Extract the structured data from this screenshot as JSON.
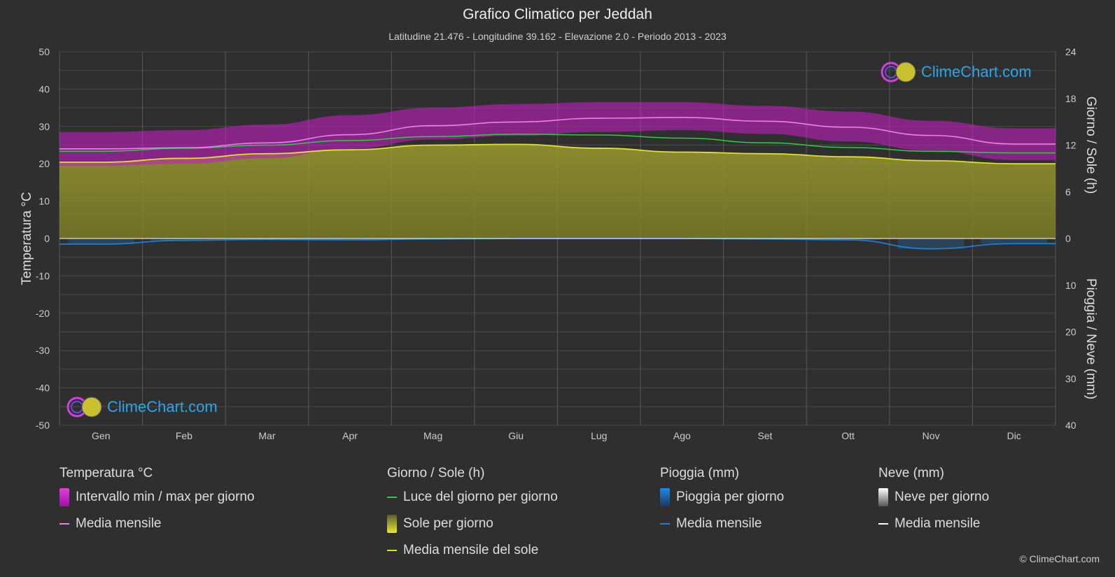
{
  "header": {
    "title": "Grafico Climatico per Jeddah",
    "subtitle": "Latitudine 21.476 - Longitudine 39.162 - Elevazione 2.0 - Periodo 2013 - 2023"
  },
  "logo": {
    "text": "ClimeChart.com"
  },
  "copyright": "© ClimeChart.com",
  "colors": {
    "background": "#2f2f2f",
    "temp_band": "#c21fc2",
    "temp_mean": "#f07cf0",
    "daylight": "#2ecc40",
    "sunshine_fill": "#8c8c2a",
    "sunshine_mean": "#e0e030",
    "rain": "#1e7fd6",
    "snow": "#ffffff"
  },
  "chart_data": {
    "type": "line",
    "categories": [
      "Gen",
      "Feb",
      "Mar",
      "Apr",
      "Mag",
      "Giu",
      "Lug",
      "Ago",
      "Set",
      "Ott",
      "Nov",
      "Dic"
    ],
    "axes": {
      "left": {
        "label": "Temperatura °C",
        "range": [
          -50,
          50
        ],
        "ticks": [
          "50",
          "40",
          "30",
          "20",
          "10",
          "0",
          "-10",
          "-20",
          "-30",
          "-40",
          "-50"
        ]
      },
      "right_top": {
        "label": "Giorno / Sole (h)",
        "range": [
          0,
          24
        ],
        "ticks": [
          "24",
          "18",
          "12",
          "6",
          "0"
        ]
      },
      "right_bottom": {
        "label": "Pioggia / Neve (mm)",
        "range": [
          0,
          40
        ],
        "ticks": [
          "10",
          "20",
          "30",
          "40"
        ]
      }
    },
    "grid": true,
    "series": [
      {
        "name": "Intervallo min / max per giorno",
        "kind": "band",
        "unit": "°C",
        "min": [
          19.5,
          20.0,
          21.5,
          24.0,
          26.5,
          27.5,
          28.5,
          29.0,
          28.0,
          26.0,
          23.5,
          21.0
        ],
        "max": [
          28.5,
          29.0,
          30.5,
          33.0,
          35.0,
          36.0,
          36.5,
          36.5,
          35.5,
          34.0,
          31.5,
          29.5
        ]
      },
      {
        "name": "Media mensile",
        "kind": "line",
        "unit": "°C",
        "group": "temperature",
        "values": [
          24.0,
          24.3,
          25.6,
          27.8,
          30.2,
          31.2,
          32.2,
          32.4,
          31.4,
          29.8,
          27.6,
          25.3
        ]
      },
      {
        "name": "Luce del giorno per giorno",
        "kind": "line",
        "unit": "h",
        "values": [
          11.2,
          11.6,
          12.0,
          12.6,
          13.1,
          13.4,
          13.3,
          12.9,
          12.3,
          11.7,
          11.2,
          11.0
        ]
      },
      {
        "name": "Sole per giorno",
        "kind": "area",
        "unit": "h",
        "values": [
          9.8,
          10.3,
          10.9,
          11.4,
          12.0,
          12.1,
          11.6,
          11.1,
          10.9,
          10.5,
          10.0,
          9.6
        ]
      },
      {
        "name": "Media mensile del sole",
        "kind": "line",
        "unit": "h",
        "values": [
          9.8,
          10.3,
          10.9,
          11.4,
          12.0,
          12.1,
          11.6,
          11.1,
          10.9,
          10.5,
          10.0,
          9.6
        ]
      },
      {
        "name": "Pioggia per giorno",
        "kind": "bars",
        "unit": "mm",
        "values": [
          1.2,
          0.4,
          0.2,
          0.3,
          0.1,
          0.0,
          0.0,
          0.0,
          0.1,
          0.3,
          2.2,
          1.1
        ]
      },
      {
        "name": "Media mensile",
        "kind": "line",
        "unit": "mm",
        "group": "rain",
        "values": [
          1.2,
          0.4,
          0.2,
          0.3,
          0.1,
          0.0,
          0.0,
          0.0,
          0.1,
          0.3,
          2.2,
          1.1
        ]
      },
      {
        "name": "Neve per giorno",
        "kind": "bars",
        "unit": "mm",
        "values": [
          0,
          0,
          0,
          0,
          0,
          0,
          0,
          0,
          0,
          0,
          0,
          0
        ]
      },
      {
        "name": "Media mensile",
        "kind": "line",
        "unit": "mm",
        "group": "snow",
        "values": [
          0,
          0,
          0,
          0,
          0,
          0,
          0,
          0,
          0,
          0,
          0,
          0
        ]
      }
    ]
  },
  "legend": {
    "temperature": {
      "title": "Temperatura °C",
      "items": [
        "Intervallo min / max per giorno",
        "Media mensile"
      ]
    },
    "sun": {
      "title": "Giorno / Sole (h)",
      "items": [
        "Luce del giorno per giorno",
        "Sole per giorno",
        "Media mensile del sole"
      ]
    },
    "rain": {
      "title": "Pioggia (mm)",
      "items": [
        "Pioggia per giorno",
        "Media mensile"
      ]
    },
    "snow": {
      "title": "Neve (mm)",
      "items": [
        "Neve per giorno",
        "Media mensile"
      ]
    }
  }
}
